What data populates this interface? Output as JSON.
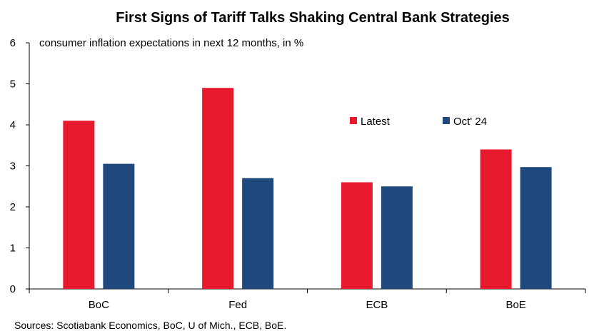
{
  "colors": {
    "latest": "#e8192c",
    "oct24": "#1f497d",
    "axis": "#000000"
  },
  "chart_data": {
    "type": "bar",
    "title": "First Signs of Tariff Talks Shaking Central Bank Strategies",
    "ylabel": "consumer inflation expectations in next 12 months, in %",
    "xlabel": "",
    "categories": [
      "BoC",
      "Fed",
      "ECB",
      "BoE"
    ],
    "series": [
      {
        "name": "Latest",
        "values": [
          4.1,
          4.9,
          2.6,
          3.4
        ]
      },
      {
        "name": "Oct' 24",
        "values": [
          3.05,
          2.7,
          2.5,
          2.97
        ]
      }
    ],
    "ylim": [
      0,
      6
    ],
    "yticks": [
      "0",
      "1",
      "2",
      "3",
      "4",
      "5",
      "6"
    ],
    "grid": false,
    "legend": "top-right",
    "source": "Sources: Scotiabank Economics, BoC, U of Mich., ECB, BoE."
  }
}
